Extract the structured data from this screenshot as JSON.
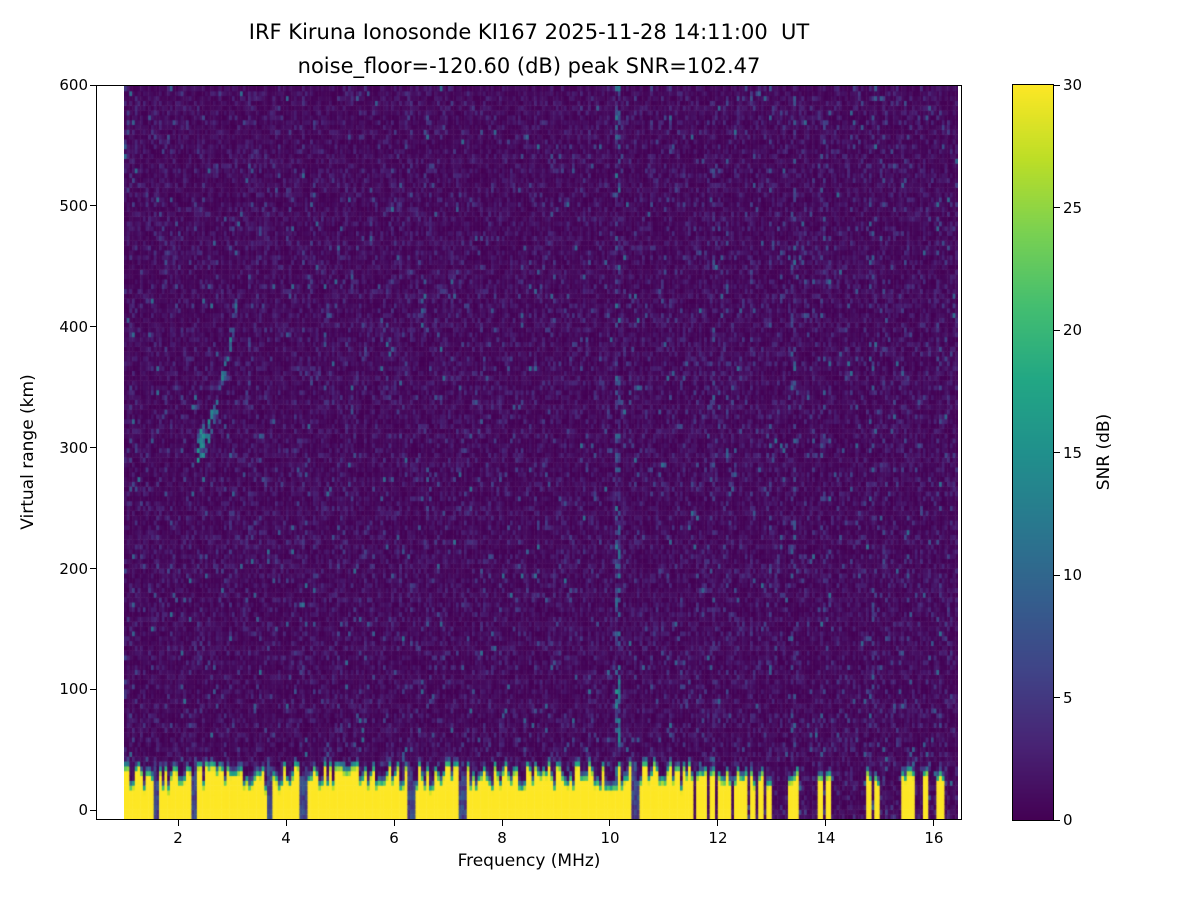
{
  "chart_data": {
    "type": "heatmap",
    "title_line1": "IRF Kiruna Ionosonde KI167 2025-11-28 14:11:00  UT",
    "title_line2": "noise_floor=-120.60 (dB) peak SNR=102.47",
    "xlabel": "Frequency (MHz)",
    "ylabel": "Virtual range (km)",
    "colorbar_label": "SNR (dB)",
    "colormap": "viridis",
    "xlim": [
      0.48,
      16.52
    ],
    "ylim": [
      -8,
      600
    ],
    "clim": [
      0,
      30
    ],
    "x_ticks": [
      2,
      4,
      6,
      8,
      10,
      12,
      14,
      16
    ],
    "y_ticks": [
      0,
      100,
      200,
      300,
      400,
      500,
      600
    ],
    "colorbar_ticks": [
      0,
      5,
      10,
      15,
      20,
      25,
      30
    ],
    "noise_floor_db": -120.6,
    "peak_snr_db": 102.47,
    "station": "IRF Kiruna Ionosonde KI167",
    "timestamp_ut": "2025-11-28 14:11:00",
    "data_extent": {
      "f_min": 1.0,
      "f_max": 16.45,
      "vr_min": -8,
      "vr_max": 600
    },
    "heatmap_grid": {
      "df_mhz": 0.05,
      "dvr_km": 4
    },
    "seed": 20251128,
    "features": {
      "background_noise_mean_db": 1.15,
      "speckle_probability": 0.02,
      "ground_clutter": {
        "f_start": 1.0,
        "f_end": 11.55,
        "top_km_min": 22,
        "top_km_max": 44,
        "snr_db": 31,
        "notches_mhz": [
          1.58,
          2.32,
          3.69,
          4.33,
          6.33,
          7.28,
          10.47
        ],
        "notch_halfwidth_mhz": 0.055
      },
      "clutter_stripes": [
        {
          "f": 11.63,
          "w": 0.05
        },
        {
          "f": 11.76,
          "w": 0.05
        },
        {
          "f": 11.9,
          "w": 0.06
        },
        {
          "f": 12.04,
          "w": 0.05
        },
        {
          "f": 12.18,
          "w": 0.06
        },
        {
          "f": 12.33,
          "w": 0.05
        },
        {
          "f": 12.48,
          "w": 0.06
        },
        {
          "f": 12.63,
          "w": 0.05
        },
        {
          "f": 12.8,
          "w": 0.06
        },
        {
          "f": 12.97,
          "w": 0.05
        },
        {
          "f": 13.36,
          "w": 0.05
        },
        {
          "f": 13.45,
          "w": 0.04
        },
        {
          "f": 13.88,
          "w": 0.05
        },
        {
          "f": 14.06,
          "w": 0.06
        },
        {
          "f": 14.82,
          "w": 0.05
        },
        {
          "f": 14.96,
          "w": 0.05
        },
        {
          "f": 15.48,
          "w": 0.06
        },
        {
          "f": 15.6,
          "w": 0.04
        },
        {
          "f": 15.86,
          "w": 0.04
        },
        {
          "f": 16.08,
          "w": 0.05
        },
        {
          "f": 16.18,
          "w": 0.04
        }
      ],
      "rfi_columns": [
        {
          "f": 3.3,
          "p": 0.08,
          "amp": 6
        },
        {
          "f": 10.15,
          "p": 0.4,
          "amp": 10,
          "hot": [
            55,
            115
          ]
        },
        {
          "f": 11.9,
          "p": 0.1,
          "amp": 6
        },
        {
          "f": 12.18,
          "p": 0.12,
          "amp": 7
        },
        {
          "f": 12.63,
          "p": 0.1,
          "amp": 6
        },
        {
          "f": 12.97,
          "p": 0.12,
          "amp": 7
        },
        {
          "f": 13.4,
          "p": 0.15,
          "amp": 7
        },
        {
          "f": 13.95,
          "p": 0.09,
          "amp": 6
        },
        {
          "f": 14.85,
          "p": 0.15,
          "amp": 7
        },
        {
          "f": 15.05,
          "p": 0.07,
          "amp": 5
        },
        {
          "f": 15.5,
          "p": 0.1,
          "amp": 6
        },
        {
          "f": 16.1,
          "p": 0.07,
          "amp": 5
        }
      ],
      "echo_trace": {
        "points": [
          [
            2.38,
            298
          ],
          [
            2.52,
            310
          ],
          [
            2.66,
            326
          ],
          [
            2.78,
            346
          ],
          [
            2.9,
            372
          ],
          [
            3.0,
            396
          ],
          [
            3.08,
            414
          ]
        ],
        "fill_probability": 0.55
      }
    }
  }
}
